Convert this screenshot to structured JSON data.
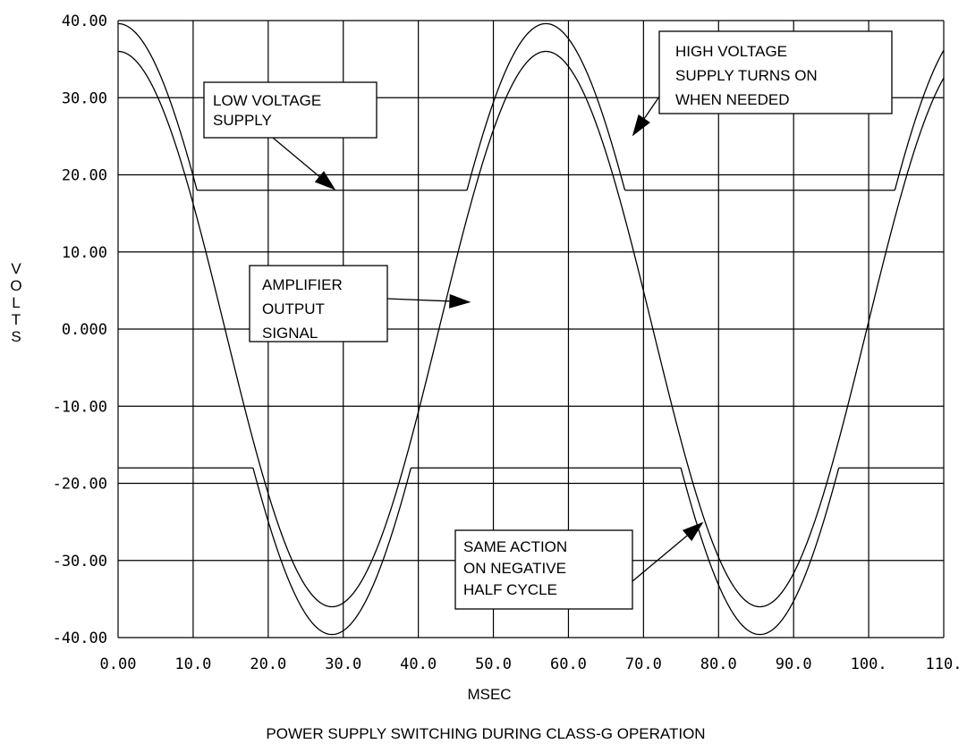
{
  "chart_data": {
    "type": "line",
    "title": "POWER SUPPLY SWITCHING DURING CLASS-G OPERATION",
    "xlabel": "MSEC",
    "ylabel": "VOLTS",
    "xlim": [
      0,
      110
    ],
    "ylim": [
      -40,
      40
    ],
    "grid": true,
    "x_tick_labels": [
      "0.00",
      "10.0",
      "20.0",
      "30.0",
      "40.0",
      "50.0",
      "60.0",
      "70.0",
      "80.0",
      "90.0",
      "100.",
      "110."
    ],
    "y_tick_labels": [
      "40.00",
      "30.00",
      "20.00",
      "10.00",
      "0.000",
      "-10.00",
      "-20.00",
      "-30.00",
      "-40.00"
    ],
    "x_ticks": [
      0,
      10,
      20,
      30,
      40,
      50,
      60,
      70,
      80,
      90,
      100,
      110
    ],
    "y_ticks": [
      40,
      30,
      20,
      10,
      0,
      -10,
      -20,
      -30,
      -40
    ],
    "series": [
      {
        "kind": "sine",
        "amplitude": 36,
        "period_ms": 57,
        "peak_at_ms": 0
      },
      {
        "kind": "positive_supply",
        "low_voltage": 18,
        "offset_above_signal": 3.6
      },
      {
        "kind": "negative_supply",
        "low_voltage": -18,
        "offset_below_signal": 3.6
      }
    ],
    "annotations": [
      {
        "text_lines": [
          "LOW VOLTAGE",
          "SUPPLY"
        ],
        "points_to": [
          29,
          18
        ]
      },
      {
        "text_lines": [
          "HIGH VOLTAGE",
          "SUPPLY TURNS ON",
          "WHEN NEEDED"
        ],
        "points_to": [
          68.5,
          25
        ]
      },
      {
        "text_lines": [
          "AMPLIFIER",
          "OUTPUT",
          "SIGNAL"
        ],
        "points_to": [
          47,
          3.5
        ]
      },
      {
        "text_lines": [
          "SAME ACTION",
          "ON NEGATIVE",
          "HALF CYCLE"
        ],
        "points_to": [
          78,
          -25
        ]
      }
    ]
  }
}
